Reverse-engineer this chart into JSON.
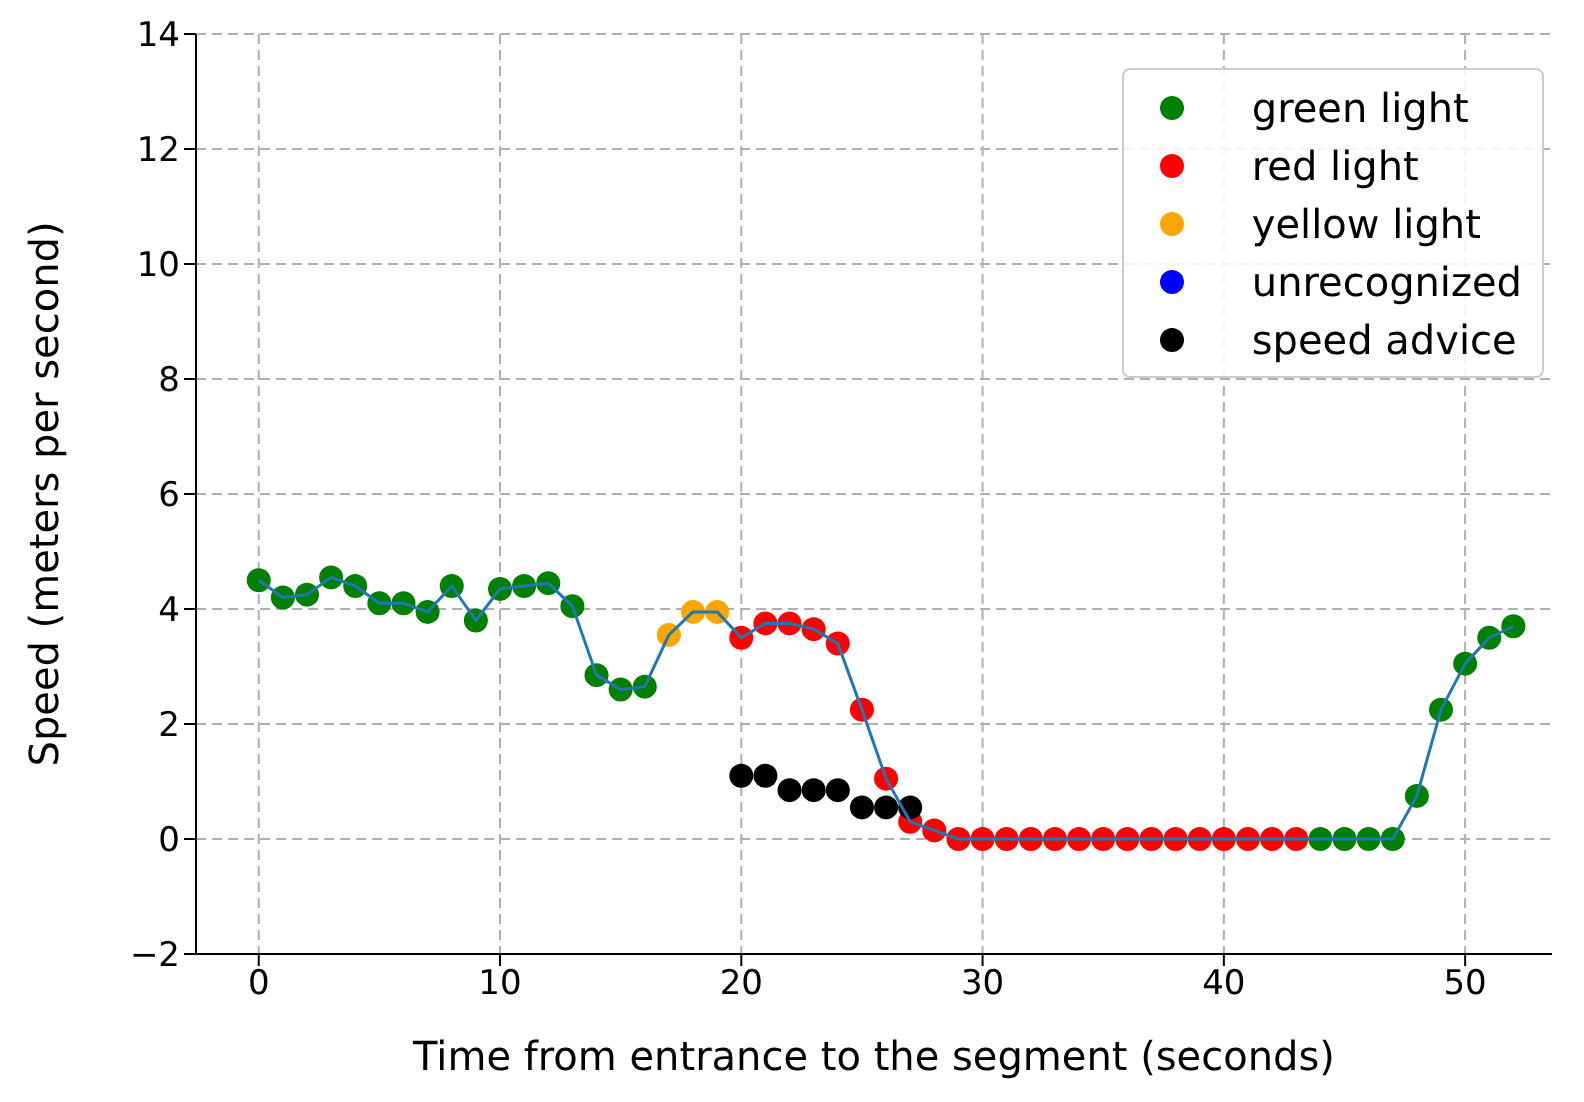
{
  "chart_data": {
    "type": "scatter",
    "xlabel": "Time from entrance to the segment (seconds)",
    "ylabel": "Speed (meters per second)",
    "xlim": [
      -2.6,
      53.6
    ],
    "ylim": [
      -2,
      14
    ],
    "xticks": [
      0,
      10,
      20,
      30,
      40,
      50
    ],
    "yticks": [
      {
        "value": -2,
        "label": "−2"
      },
      0,
      2,
      4,
      6,
      8,
      10,
      12,
      14
    ],
    "grid": true,
    "legend": "top right",
    "marker": "circle",
    "series": [
      {
        "name": "green light",
        "color": "#008000",
        "x": [
          0,
          1,
          2,
          3,
          4,
          5,
          6,
          7,
          8,
          9,
          10,
          11,
          12,
          13,
          14,
          15,
          16,
          44,
          45,
          46,
          47,
          48,
          49,
          50,
          51,
          52
        ],
        "values": [
          4.5,
          4.2,
          4.25,
          4.55,
          4.4,
          4.1,
          4.1,
          3.95,
          4.4,
          3.8,
          4.35,
          4.4,
          4.45,
          4.05,
          2.85,
          2.6,
          2.65,
          0,
          0,
          0,
          0,
          0.75,
          2.25,
          3.05,
          3.5,
          3.7
        ]
      },
      {
        "name": "red light",
        "color": "#ff0000",
        "x": [
          20,
          21,
          22,
          23,
          24,
          25,
          26,
          27,
          28,
          29,
          30,
          31,
          32,
          33,
          34,
          35,
          36,
          37,
          38,
          39,
          40,
          41,
          42,
          43
        ],
        "values": [
          3.5,
          3.75,
          3.75,
          3.65,
          3.4,
          2.25,
          1.05,
          0.3,
          0.15,
          0,
          0,
          0,
          0,
          0,
          0,
          0,
          0,
          0,
          0,
          0,
          0,
          0,
          0,
          0
        ]
      },
      {
        "name": "yellow light",
        "color": "#ffa500",
        "x": [
          17,
          18,
          19
        ],
        "values": [
          3.55,
          3.95,
          3.95
        ]
      },
      {
        "name": "unrecognized",
        "color": "#0000ff"
      },
      {
        "name": "speed advice",
        "color": "#000000",
        "x": [
          20,
          21,
          22,
          23,
          24,
          25,
          26,
          27
        ],
        "values": [
          1.1,
          1.1,
          0.85,
          0.85,
          0.85,
          0.55,
          0.55,
          0.55
        ]
      },
      {
        "type": "line",
        "color": "#1f77b4",
        "marker": "none",
        "line_style": "solid",
        "x": [
          0,
          1,
          2,
          3,
          4,
          5,
          6,
          7,
          8,
          9,
          10,
          11,
          12,
          13,
          14,
          15,
          16,
          17,
          18,
          19,
          20,
          21,
          22,
          23,
          24,
          25,
          26,
          27,
          28,
          29,
          30,
          31,
          32,
          33,
          34,
          35,
          36,
          37,
          38,
          39,
          40,
          41,
          42,
          43,
          44,
          45,
          46,
          47,
          48,
          49,
          50,
          51,
          52
        ],
        "values": [
          4.5,
          4.2,
          4.25,
          4.55,
          4.4,
          4.1,
          4.1,
          3.95,
          4.4,
          3.8,
          4.35,
          4.4,
          4.45,
          4.05,
          2.85,
          2.6,
          2.65,
          3.55,
          3.95,
          3.95,
          3.5,
          3.75,
          3.75,
          3.65,
          3.4,
          2.25,
          1.05,
          0.3,
          0.15,
          0,
          0,
          0,
          0,
          0,
          0,
          0,
          0,
          0,
          0,
          0,
          0,
          0,
          0,
          0,
          0,
          0,
          0,
          0,
          0.75,
          2.25,
          3.05,
          3.5,
          3.7
        ]
      }
    ]
  }
}
